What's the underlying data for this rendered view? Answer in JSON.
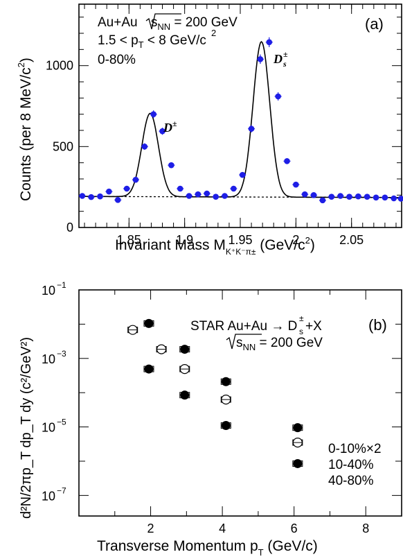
{
  "chart_data": [
    {
      "type": "scatter",
      "panel_label": "(a)",
      "annotation_lines": [
        "Au+Au √s_NN = 200 GeV",
        "1.5 < p_T < 8 GeV/c",
        "0-80%"
      ],
      "ann1_prefix": "Au+Au ",
      "ann1_s": "s",
      "ann1_sub": "NN",
      "ann1_suffix": " = 200 GeV",
      "ann2_a": "1.5 < p",
      "ann2_sub": "T",
      "ann2_b": " < 8 GeV/c",
      "ann3": "0-80%",
      "peak_label_dplus": "D",
      "peak_label_dplus_sup": "±",
      "peak_label_ds": "D",
      "peak_label_ds_sub": "s",
      "peak_label_ds_sup": "±",
      "xlabel_main": "Invariant Mass M",
      "xlabel_sub": "K⁺K⁻π±",
      "xlabel_unit": " (GeV/c",
      "xlabel_unit_sup": "2",
      "xlabel_close": ")",
      "ylabel_main": "Counts (per 8 MeV/c",
      "ylabel_sup": "2",
      "ylabel_close": ")",
      "xlim": [
        1.805,
        2.095
      ],
      "ylim": [
        0,
        1380
      ],
      "xticks": [
        "1.85",
        "1.9",
        "1.95",
        "2",
        "2.05"
      ],
      "xtick_values": [
        1.85,
        1.9,
        1.95,
        2.0,
        2.05
      ],
      "yticks": [
        "0",
        "500",
        "1000"
      ],
      "ytick_values": [
        0,
        500,
        1000
      ],
      "series": [
        {
          "marker_color": "#1e1ee6",
          "x": [
            1.808,
            1.816,
            1.824,
            1.832,
            1.84,
            1.848,
            1.856,
            1.864,
            1.872,
            1.88,
            1.888,
            1.896,
            1.904,
            1.912,
            1.92,
            1.928,
            1.936,
            1.944,
            1.952,
            1.96,
            1.968,
            1.976,
            1.984,
            1.992,
            2.0,
            2.008,
            2.016,
            2.024,
            2.032,
            2.04,
            2.048,
            2.056,
            2.064,
            2.072,
            2.08,
            2.088,
            2.096
          ],
          "y": [
            195,
            188,
            192,
            222,
            170,
            240,
            295,
            500,
            700,
            595,
            385,
            240,
            195,
            205,
            210,
            190,
            195,
            240,
            325,
            610,
            1040,
            1145,
            810,
            410,
            265,
            205,
            200,
            168,
            190,
            195,
            190,
            192,
            190,
            185,
            185,
            180,
            178
          ]
        }
      ],
      "fit_curve": {
        "line_color": "#000000",
        "background_style": "dashed",
        "background": [
          192,
          185
        ],
        "peaks": [
          {
            "mean": 1.869,
            "sigma": 0.0075,
            "amplitude": 515
          },
          {
            "mean": 1.969,
            "sigma": 0.0075,
            "amplitude": 960
          }
        ]
      },
      "grid": false
    },
    {
      "type": "scatter",
      "panel_label": "(b)",
      "title_a": "STAR Au+Au → D",
      "title_sub": "s",
      "title_sup": "±",
      "title_b": "+X",
      "energy_s": "s",
      "energy_sub": "NN",
      "energy_suffix": " = 200 GeV",
      "xlabel_main": "Transverse Momentum p",
      "xlabel_sub": "T",
      "xlabel_unit": " (GeV/c)",
      "ylabel_text": "d²N/2πp_T dp_T dy (c²/GeV²)",
      "xlim": [
        0,
        9
      ],
      "ylim_log10": [
        -7.6,
        -1.0
      ],
      "yscale": "log",
      "xticks": [
        "2",
        "4",
        "6",
        "8"
      ],
      "xtick_values": [
        2,
        4,
        6,
        8
      ],
      "yticks_base": [
        "10",
        "10",
        "10",
        "10"
      ],
      "yticks_exp": [
        "−1",
        "−3",
        "−5",
        "−7"
      ],
      "ytick_exponents": [
        -1,
        -3,
        -5,
        -7
      ],
      "series": [
        {
          "name": "0-10%×2",
          "marker": "filled-circle",
          "x": [
            1.95,
            2.95,
            4.1,
            6.1
          ],
          "y": [
            0.0105,
            0.00185,
            0.00021,
            9.5e-06
          ]
        },
        {
          "name": "10-40%",
          "marker": "open-circle",
          "x": [
            1.5,
            2.3,
            2.95,
            4.1,
            6.1
          ],
          "y": [
            0.0068,
            0.00185,
            0.00049,
            6.3e-05,
            3.5e-06
          ]
        },
        {
          "name": "40-80%",
          "marker": "filled-circle",
          "x": [
            1.95,
            2.95,
            4.1,
            6.1
          ],
          "y": [
            0.00049,
            8.5e-05,
            1.1e-05,
            8.5e-07
          ]
        }
      ],
      "grid": false
    }
  ]
}
